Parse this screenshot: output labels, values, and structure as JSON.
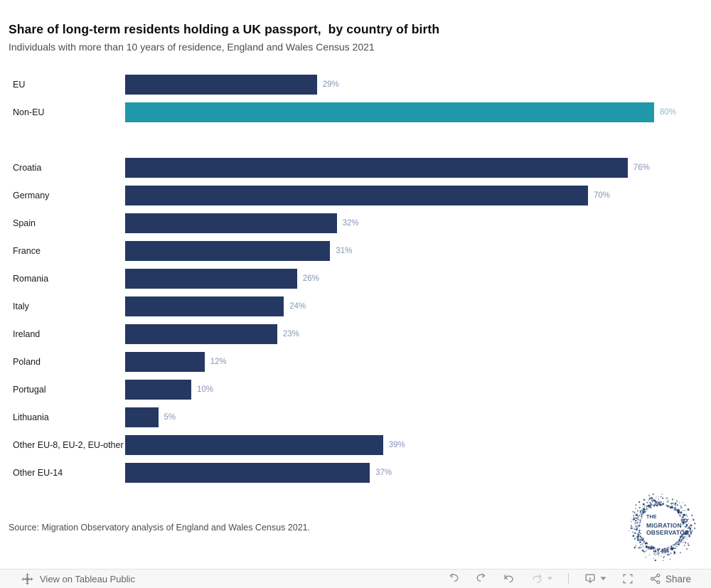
{
  "title": "Share of long-term residents holding a UK passport,  by country of birth",
  "subtitle": "Individuals with more than 10 years of residence, England and Wales Census 2021",
  "source": "Source: Migration Observatory analysis of England and Wales Census 2021.",
  "colors": {
    "navy": "#253862",
    "teal": "#1F98A9",
    "value_label_navy": "#8794B8",
    "value_label_teal": "#7FBFCE"
  },
  "chart_data": {
    "type": "bar",
    "orientation": "horizontal",
    "unit": "%",
    "xlim": [
      0,
      87
    ],
    "grid": false,
    "legend": false,
    "title": "Share of long-term residents holding a UK passport,  by country of birth",
    "subtitle": "Individuals with more than 10 years of residence, England and Wales Census 2021",
    "value_labels": "outside-end",
    "groups": [
      {
        "name": "summary",
        "rows": [
          {
            "label": "EU",
            "value": 29,
            "color": "navy"
          },
          {
            "label": "Non-EU",
            "value": 80,
            "color": "teal"
          }
        ]
      },
      {
        "name": "countries",
        "rows": [
          {
            "label": "Croatia",
            "value": 76,
            "color": "navy"
          },
          {
            "label": "Germany",
            "value": 70,
            "color": "navy"
          },
          {
            "label": "Spain",
            "value": 32,
            "color": "navy"
          },
          {
            "label": "France",
            "value": 31,
            "color": "navy"
          },
          {
            "label": "Romania",
            "value": 26,
            "color": "navy"
          },
          {
            "label": "Italy",
            "value": 24,
            "color": "navy"
          },
          {
            "label": "Ireland",
            "value": 23,
            "color": "navy"
          },
          {
            "label": "Poland",
            "value": 12,
            "color": "navy"
          },
          {
            "label": "Portugal",
            "value": 10,
            "color": "navy"
          },
          {
            "label": "Lithuania",
            "value": 5,
            "color": "navy"
          },
          {
            "label": "Other EU-8, EU-2, EU-other",
            "value": 39,
            "color": "navy"
          },
          {
            "label": "Other EU-14",
            "value": 37,
            "color": "navy"
          }
        ]
      }
    ]
  },
  "logo": {
    "line1": "THE",
    "line2": "MIGRATION",
    "line3": "OBSERVATORY"
  },
  "toolbar": {
    "view_label": "View on Tableau Public",
    "share_label": "Share",
    "icons": [
      "tableau-logo",
      "undo",
      "redo",
      "revert",
      "refresh",
      "download",
      "fullscreen",
      "share"
    ]
  }
}
